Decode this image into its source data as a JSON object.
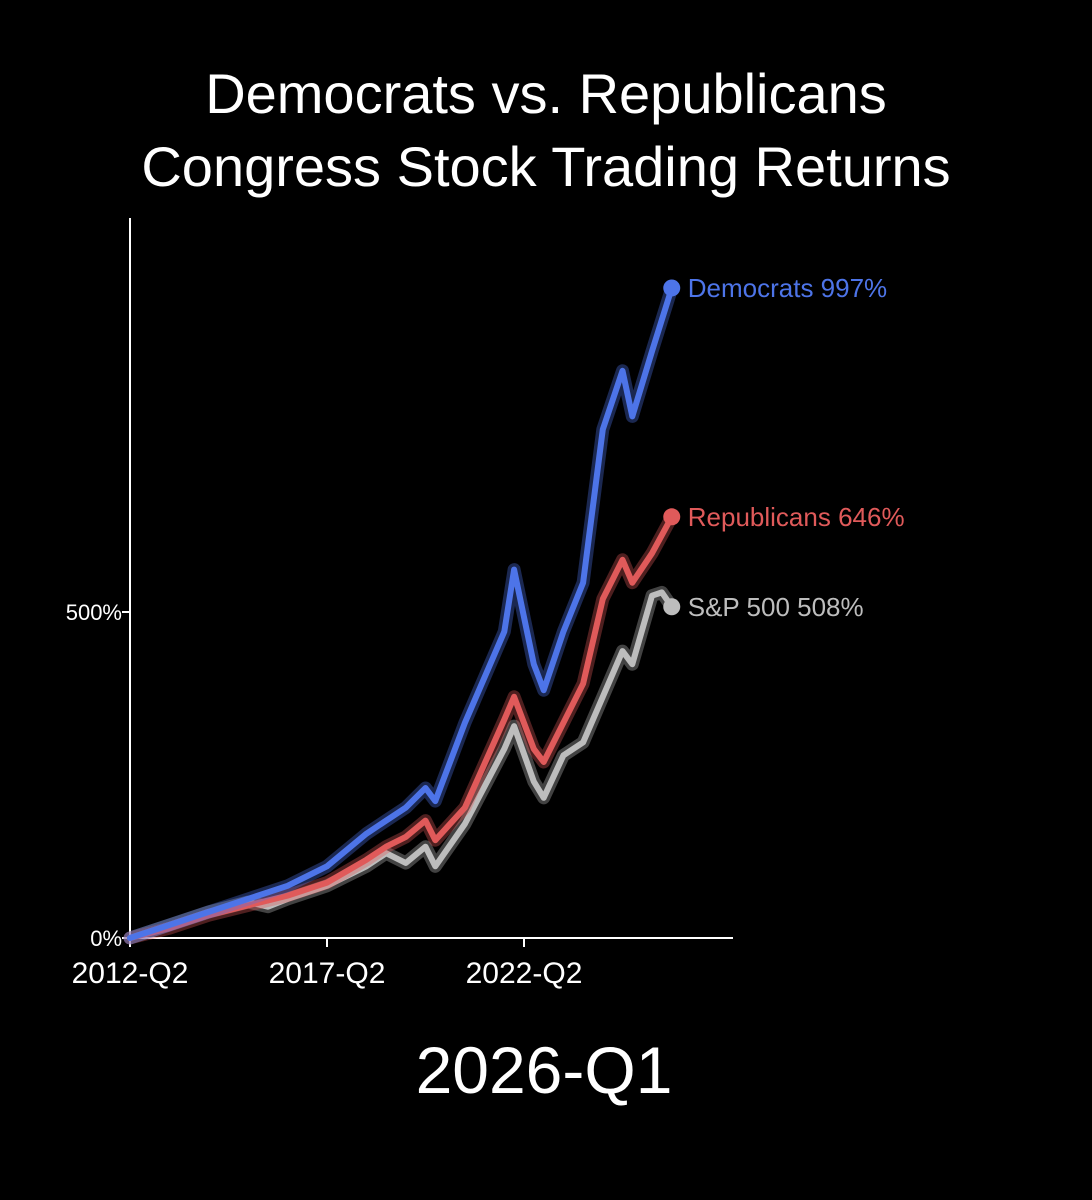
{
  "chart_data": {
    "type": "line",
    "title_lines": [
      "Democrats vs. Republicans",
      "Congress Stock Trading Returns"
    ],
    "current_period": "2026-Q1",
    "x_ticks": [
      "2012-Q2",
      "2017-Q2",
      "2022-Q2"
    ],
    "y_ticks": [
      "0%",
      "500%"
    ],
    "ylim": [
      0,
      1100
    ],
    "grid": false,
    "legend": "end-of-line labels",
    "series": [
      {
        "name": "S&P 500",
        "label": "S&P 500 508%",
        "end_value": 508,
        "color": "#bdbdbd",
        "points": [
          [
            "2012-Q2",
            0
          ],
          [
            "2013-Q2",
            20
          ],
          [
            "2014-Q2",
            40
          ],
          [
            "2015-Q2",
            55
          ],
          [
            "2015-Q4",
            48
          ],
          [
            "2016-Q2",
            60
          ],
          [
            "2017-Q2",
            80
          ],
          [
            "2018-Q2",
            110
          ],
          [
            "2018-Q4",
            130
          ],
          [
            "2019-Q2",
            115
          ],
          [
            "2019-Q4",
            140
          ],
          [
            "2020-Q1",
            110
          ],
          [
            "2020-Q4",
            175
          ],
          [
            "2021-Q4",
            290
          ],
          [
            "2022-Q1",
            325
          ],
          [
            "2022-Q3",
            240
          ],
          [
            "2022-Q4",
            215
          ],
          [
            "2023-Q2",
            280
          ],
          [
            "2023-Q4",
            300
          ],
          [
            "2024-Q2",
            370
          ],
          [
            "2024-Q4",
            440
          ],
          [
            "2025-Q1",
            420
          ],
          [
            "2025-Q3",
            525
          ],
          [
            "2025-Q4",
            530
          ],
          [
            "2026-Q1",
            508
          ]
        ]
      },
      {
        "name": "Republicans",
        "label": "Republicans 646%",
        "end_value": 646,
        "color": "#e05a5a",
        "points": [
          [
            "2012-Q2",
            0
          ],
          [
            "2013-Q2",
            15
          ],
          [
            "2014-Q2",
            35
          ],
          [
            "2015-Q2",
            50
          ],
          [
            "2016-Q2",
            65
          ],
          [
            "2017-Q2",
            85
          ],
          [
            "2018-Q2",
            120
          ],
          [
            "2018-Q4",
            140
          ],
          [
            "2019-Q2",
            155
          ],
          [
            "2019-Q4",
            180
          ],
          [
            "2020-Q1",
            150
          ],
          [
            "2020-Q4",
            200
          ],
          [
            "2021-Q4",
            335
          ],
          [
            "2022-Q1",
            370
          ],
          [
            "2022-Q3",
            290
          ],
          [
            "2022-Q4",
            270
          ],
          [
            "2023-Q2",
            330
          ],
          [
            "2023-Q4",
            390
          ],
          [
            "2024-Q2",
            520
          ],
          [
            "2024-Q4",
            580
          ],
          [
            "2025-Q1",
            545
          ],
          [
            "2025-Q3",
            590
          ],
          [
            "2026-Q1",
            646
          ]
        ]
      },
      {
        "name": "Democrats",
        "label": "Democrats 997%",
        "end_value": 997,
        "color": "#4d74e8",
        "points": [
          [
            "2012-Q2",
            0
          ],
          [
            "2013-Q2",
            20
          ],
          [
            "2014-Q2",
            40
          ],
          [
            "2015-Q2",
            60
          ],
          [
            "2016-Q2",
            80
          ],
          [
            "2017-Q2",
            110
          ],
          [
            "2018-Q2",
            160
          ],
          [
            "2018-Q4",
            180
          ],
          [
            "2019-Q2",
            200
          ],
          [
            "2019-Q4",
            230
          ],
          [
            "2020-Q1",
            210
          ],
          [
            "2020-Q4",
            330
          ],
          [
            "2021-Q4",
            470
          ],
          [
            "2022-Q1",
            565
          ],
          [
            "2022-Q3",
            420
          ],
          [
            "2022-Q4",
            380
          ],
          [
            "2023-Q2",
            470
          ],
          [
            "2023-Q4",
            545
          ],
          [
            "2024-Q2",
            780
          ],
          [
            "2024-Q4",
            870
          ],
          [
            "2025-Q1",
            800
          ],
          [
            "2025-Q3",
            900
          ],
          [
            "2026-Q1",
            997
          ]
        ]
      }
    ]
  }
}
